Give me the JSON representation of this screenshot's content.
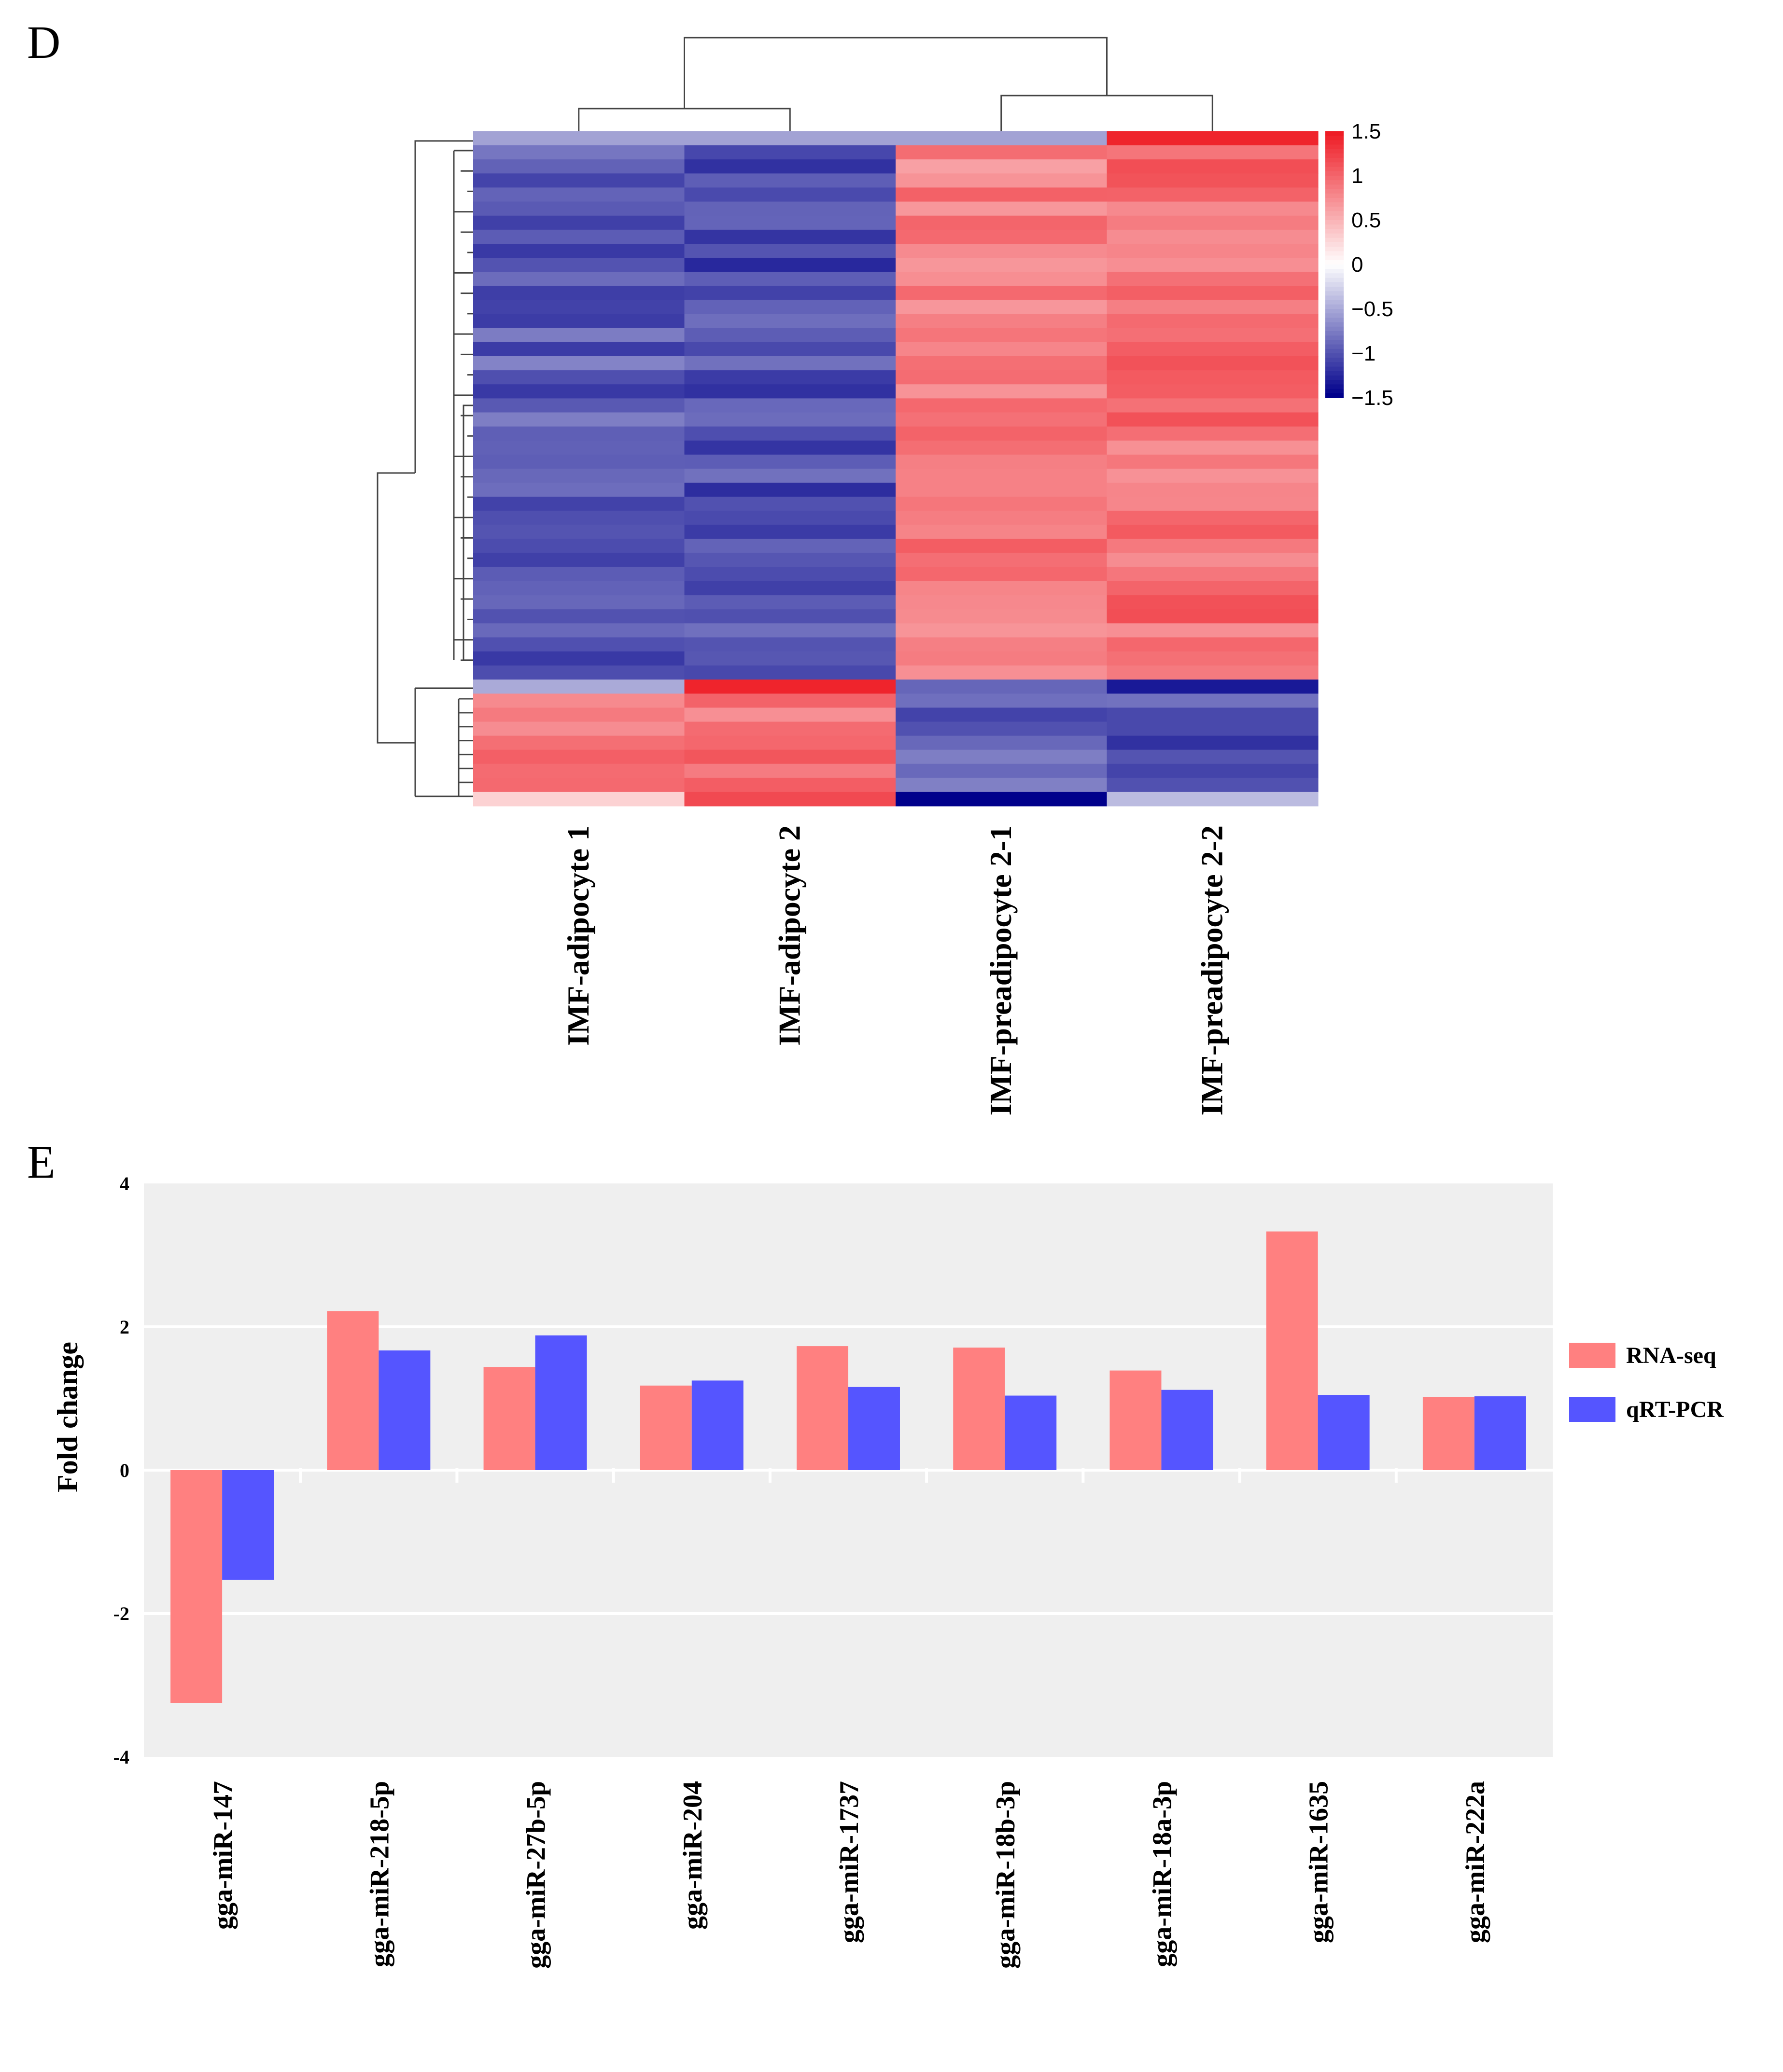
{
  "chart_data": [
    {
      "panel": "D",
      "type": "heatmap",
      "columns": [
        "IMF-adipocyte 1",
        "IMF-adipocyte 2",
        "IMF-preadipocyte 2-1",
        "IMF-preadipocyte 2-2"
      ],
      "colorbar": {
        "ticks": [
          "1.5",
          "1",
          "0.5",
          "0",
          "−0.5",
          "−1",
          "−1.5"
        ],
        "tick_values": [
          1.5,
          1,
          0.5,
          0,
          -0.5,
          -1,
          -1.5
        ],
        "range": [
          -1.5,
          1.5
        ],
        "colors": [
          "#00008b",
          "#ffffff",
          "#ee1c25"
        ]
      },
      "row_blocks": [
        {
          "rows": 1,
          "values": [
            -0.55,
            -0.55,
            -0.55,
            1.45
          ]
        },
        {
          "rows": 38,
          "values": [
            -0.95,
            -1.05,
            0.85,
            0.95
          ]
        },
        {
          "rows": 1,
          "values": [
            -0.5,
            1.45,
            -0.9,
            -1.35
          ]
        },
        {
          "rows": 7,
          "values": [
            0.85,
            0.95,
            -0.95,
            -1.05
          ]
        },
        {
          "rows": 1,
          "values": [
            0.3,
            1.2,
            -1.5,
            -0.4
          ]
        }
      ]
    },
    {
      "panel": "E",
      "type": "bar",
      "categories": [
        "gga-miR-147",
        "gga-miR-218-5p",
        "gga-miR-27b-5p",
        "gga-miR-204",
        "gga-miR-1737",
        "gga-miR-18b-3p",
        "gga-miR-18a-3p",
        "gga-miR-1635",
        "gga-miR-222a"
      ],
      "series": [
        {
          "name": "RNA-seq",
          "color": "#ff8080",
          "values": [
            -3.25,
            2.22,
            1.44,
            1.18,
            1.73,
            1.71,
            1.39,
            3.33,
            1.02
          ]
        },
        {
          "name": "qRT-PCR",
          "color": "#5555ff",
          "values": [
            -1.53,
            1.67,
            1.88,
            1.25,
            1.16,
            1.04,
            1.12,
            1.05,
            1.03
          ]
        }
      ],
      "ylabel": "Fold change",
      "xlabel": "",
      "ylim": [
        -4,
        4
      ],
      "yticks": [
        4,
        2,
        0,
        -2,
        -4
      ],
      "ytick_labels": [
        "4",
        "2",
        "0",
        "-2",
        "-4"
      ],
      "grid": true,
      "legend": "right"
    }
  ]
}
